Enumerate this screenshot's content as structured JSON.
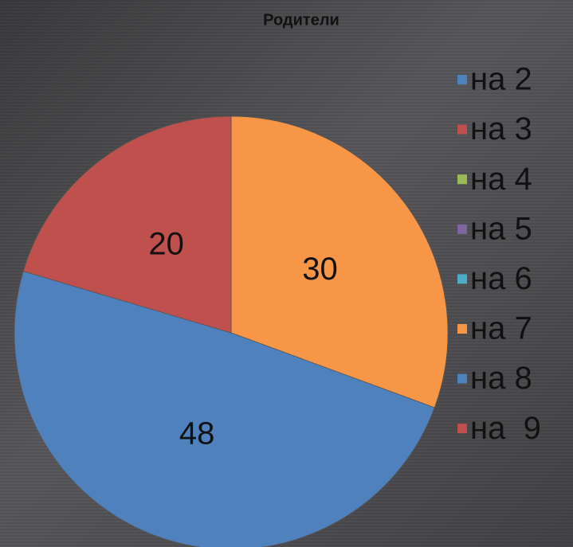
{
  "chart_data": {
    "type": "pie",
    "title": "Родители",
    "categories": [
      "на 2",
      "на 3",
      "на 4",
      "на 5",
      "на 6",
      "на 7",
      "на 8",
      "на  9"
    ],
    "values": [
      0,
      0,
      0,
      0,
      0,
      30,
      48,
      20
    ],
    "colors": [
      "#4f81bd",
      "#c0504d",
      "#9bbb59",
      "#8064a2",
      "#4bacc6",
      "#f79646",
      "#4f81bd",
      "#c0504d"
    ],
    "legend": "right"
  }
}
